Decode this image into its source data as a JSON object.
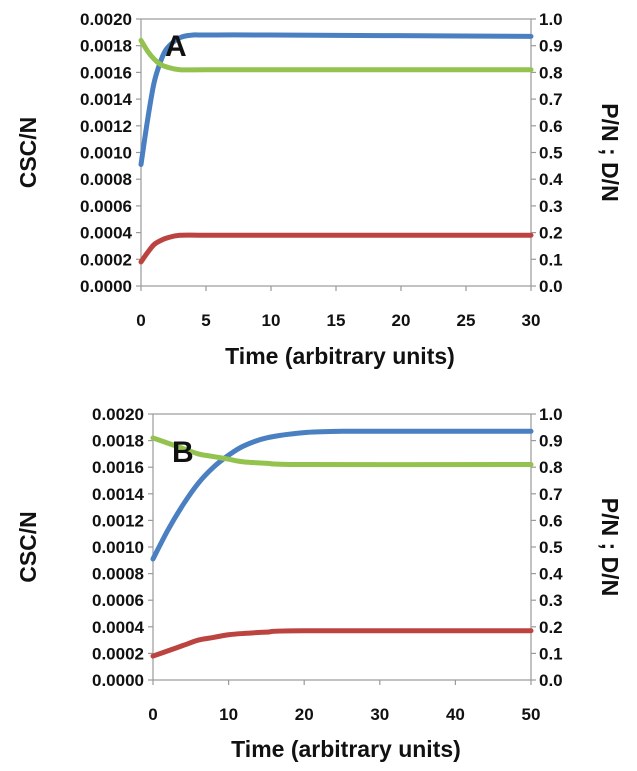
{
  "chart_data": [
    {
      "type": "line",
      "panel_label": "A",
      "xlabel": "Time (arbitrary units)",
      "ylabel_left": "CSC/N",
      "ylabel_right": "P/N ; D/N",
      "xlim": [
        0,
        30
      ],
      "ylim_left": [
        0,
        0.002
      ],
      "ylim_right": [
        0,
        1.0
      ],
      "x_ticks": [
        "0",
        "5",
        "10",
        "15",
        "20",
        "25",
        "30"
      ],
      "y_left_ticks": [
        "0.0000",
        "0.0002",
        "0.0004",
        "0.0006",
        "0.0008",
        "0.0010",
        "0.0012",
        "0.0014",
        "0.0016",
        "0.0018",
        "0.0020"
      ],
      "y_right_ticks": [
        "0.0",
        "0.1",
        "0.2",
        "0.3",
        "0.4",
        "0.5",
        "0.6",
        "0.7",
        "0.8",
        "0.9",
        "1.0"
      ],
      "grid": false,
      "colors": {
        "blue": "#4a7fc1",
        "green": "#93c24f",
        "red": "#bb4340"
      },
      "series": [
        {
          "color_key": "blue",
          "axis": "left",
          "x": [
            0,
            0.5,
            1,
            1.5,
            2,
            3,
            4,
            5,
            10,
            30
          ],
          "y": [
            0.00091,
            0.00124,
            0.00152,
            0.00168,
            0.00178,
            0.00186,
            0.00188,
            0.00188,
            0.00188,
            0.00187
          ]
        },
        {
          "color_key": "green",
          "axis": "right",
          "x": [
            0,
            0.5,
            1,
            1.5,
            2,
            3,
            5,
            10,
            30
          ],
          "y": [
            0.92,
            0.88,
            0.85,
            0.83,
            0.82,
            0.81,
            0.81,
            0.81,
            0.81
          ]
        },
        {
          "color_key": "red",
          "axis": "left",
          "x": [
            0,
            0.5,
            1,
            1.5,
            2,
            3,
            5,
            10,
            30
          ],
          "y": [
            0.00018,
            0.00025,
            0.00031,
            0.00034,
            0.00036,
            0.00038,
            0.00038,
            0.00038,
            0.00038
          ]
        }
      ]
    },
    {
      "type": "line",
      "panel_label": "B",
      "xlabel": "Time (arbitrary units)",
      "ylabel_left": "CSC/N",
      "ylabel_right": "P/N ; D/N",
      "xlim": [
        0,
        50
      ],
      "ylim_left": [
        0,
        0.002
      ],
      "ylim_right": [
        0,
        1.0
      ],
      "x_ticks": [
        "0",
        "10",
        "20",
        "30",
        "40",
        "50"
      ],
      "y_left_ticks": [
        "0.0000",
        "0.0002",
        "0.0004",
        "0.0006",
        "0.0008",
        "0.0010",
        "0.0012",
        "0.0014",
        "0.0016",
        "0.0018",
        "0.0020"
      ],
      "y_right_ticks": [
        "0.0",
        "0.1",
        "0.2",
        "0.3",
        "0.4",
        "0.5",
        "0.6",
        "0.7",
        "0.8",
        "0.9",
        "1.0"
      ],
      "grid": false,
      "colors": {
        "blue": "#4a7fc1",
        "green": "#93c24f",
        "red": "#bb4340"
      },
      "series": [
        {
          "color_key": "blue",
          "axis": "left",
          "x": [
            0,
            2,
            4,
            6,
            8,
            10,
            12,
            15,
            20,
            25,
            30,
            50
          ],
          "y": [
            0.00091,
            0.00113,
            0.00132,
            0.00148,
            0.0016,
            0.00169,
            0.00176,
            0.00182,
            0.00186,
            0.00187,
            0.00187,
            0.00187
          ]
        },
        {
          "color_key": "green",
          "axis": "right",
          "x": [
            0,
            2,
            4,
            6,
            8,
            10,
            12,
            15,
            20,
            50
          ],
          "y": [
            0.91,
            0.89,
            0.87,
            0.85,
            0.84,
            0.83,
            0.82,
            0.815,
            0.81,
            0.81
          ]
        },
        {
          "color_key": "red",
          "axis": "left",
          "x": [
            0,
            2,
            4,
            6,
            8,
            10,
            12,
            15,
            20,
            50
          ],
          "y": [
            0.00018,
            0.00022,
            0.00026,
            0.0003,
            0.00032,
            0.00034,
            0.00035,
            0.00036,
            0.00037,
            0.00037
          ]
        }
      ]
    }
  ]
}
